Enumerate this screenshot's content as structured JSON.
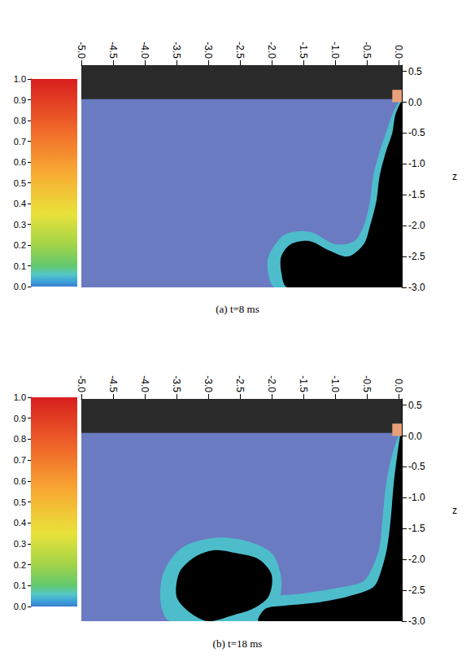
{
  "chart_data": [
    {
      "type": "field",
      "caption": "(a) t=8 ms",
      "y_label": "z",
      "grid": false,
      "xlim": [
        -5.0,
        0.05
      ],
      "xticks": [
        {
          "value": -5,
          "label": "-5.0"
        },
        -4.5,
        {
          "value": -4,
          "label": "-4.0"
        },
        -3.5,
        {
          "value": -3,
          "label": "-3.0"
        },
        -2.5,
        {
          "value": -2,
          "label": "-2.0"
        },
        -1.5,
        {
          "value": -1,
          "label": "-1.0"
        },
        -0.5,
        {
          "value": 0,
          "label": "0.0"
        }
      ],
      "ylim": [
        -3.0,
        0.6
      ],
      "yticks": [
        0.5,
        {
          "value": 0,
          "label": "0.0"
        },
        -0.5,
        {
          "value": -1,
          "label": "-1.0"
        },
        -1.5,
        {
          "value": -2,
          "label": "-2.0"
        },
        -2.5,
        {
          "value": -3,
          "label": "-3.0"
        }
      ],
      "field_color": "#6b7bc1",
      "wall": {
        "x": [
          -5.0,
          0.05
        ],
        "z": [
          0.05,
          0.6
        ],
        "color": "#2a2a2a"
      },
      "nozzle": {
        "x": [
          -0.1,
          0.05
        ],
        "z": [
          0.0,
          0.2
        ],
        "color": "#e8a07a"
      },
      "halo": {
        "value": 0.05,
        "polygons": [
          [
            [
              0.05,
              0.05
            ],
            [
              -0.1,
              -0.2
            ],
            [
              -0.2,
              -0.5
            ],
            [
              -0.3,
              -0.8
            ],
            [
              -0.4,
              -1.2
            ],
            [
              -0.45,
              -1.6
            ],
            [
              -0.55,
              -2.0
            ],
            [
              -0.7,
              -2.25
            ],
            [
              -1.0,
              -2.3
            ],
            [
              -1.4,
              -2.1
            ],
            [
              -1.8,
              -2.15
            ],
            [
              -2.05,
              -2.5
            ],
            [
              -2.05,
              -2.8
            ],
            [
              -1.95,
              -3.0
            ],
            [
              0.05,
              -3.0
            ]
          ]
        ]
      },
      "spray": {
        "color": "#000000",
        "polygons": [
          [
            [
              0.05,
              0.0
            ],
            [
              -0.05,
              -0.2
            ],
            [
              -0.1,
              -0.5
            ],
            [
              -0.2,
              -0.8
            ],
            [
              -0.3,
              -1.2
            ],
            [
              -0.35,
              -1.6
            ],
            [
              -0.45,
              -2.0
            ],
            [
              -0.55,
              -2.3
            ],
            [
              -0.8,
              -2.5
            ],
            [
              -1.1,
              -2.4
            ],
            [
              -1.4,
              -2.25
            ],
            [
              -1.7,
              -2.3
            ],
            [
              -1.85,
              -2.5
            ],
            [
              -1.85,
              -2.75
            ],
            [
              -1.75,
              -3.0
            ],
            [
              0.05,
              -3.0
            ]
          ]
        ]
      },
      "colorbar": {
        "range": [
          0,
          1
        ],
        "ticks": [
          {
            "value": 0,
            "label": "0.0"
          },
          0.1,
          0.2,
          0.3,
          0.4,
          0.5,
          0.6,
          0.7,
          0.8,
          0.9,
          {
            "value": 1,
            "label": "1.0"
          }
        ]
      }
    },
    {
      "type": "field",
      "caption": "(b) t=18 ms",
      "y_label": "z",
      "grid": false,
      "xlim": [
        -5.0,
        0.05
      ],
      "xticks": [
        {
          "value": -5,
          "label": "-5.0"
        },
        -4.5,
        {
          "value": -4,
          "label": "-4.0"
        },
        -3.5,
        {
          "value": -3,
          "label": "-3.0"
        },
        -2.5,
        {
          "value": -2,
          "label": "-2.0"
        },
        -1.5,
        {
          "value": -1,
          "label": "-1.0"
        },
        -0.5,
        {
          "value": 0,
          "label": "0.0"
        }
      ],
      "ylim": [
        -3.0,
        0.6
      ],
      "yticks": [
        0.5,
        {
          "value": 0,
          "label": "0.0"
        },
        -0.5,
        {
          "value": -1,
          "label": "-1.0"
        },
        -1.5,
        {
          "value": -2,
          "label": "-2.0"
        },
        -2.5,
        {
          "value": -3,
          "label": "-3.0"
        }
      ],
      "field_color": "#6b7bc1",
      "wall": {
        "x": [
          -5.0,
          0.05
        ],
        "z": [
          0.05,
          0.6
        ],
        "color": "#2a2a2a"
      },
      "nozzle": {
        "x": [
          -0.1,
          0.05
        ],
        "z": [
          0.0,
          0.2
        ],
        "color": "#e8a07a"
      },
      "halo": {
        "value": 0.05,
        "polygons": [
          [
            [
              0.05,
              0.1
            ],
            [
              -0.1,
              -0.3
            ],
            [
              -0.2,
              -0.8
            ],
            [
              -0.25,
              -1.3
            ],
            [
              -0.3,
              -1.8
            ],
            [
              -0.4,
              -2.1
            ],
            [
              -0.55,
              -2.35
            ],
            [
              -0.9,
              -2.45
            ],
            [
              -1.5,
              -2.55
            ],
            [
              -2.0,
              -2.6
            ],
            [
              -2.3,
              -2.7
            ],
            [
              -2.4,
              -3.0
            ],
            [
              0.05,
              -3.0
            ]
          ],
          [
            [
              -3.75,
              -2.7
            ],
            [
              -3.7,
              -2.2
            ],
            [
              -3.4,
              -1.8
            ],
            [
              -2.9,
              -1.65
            ],
            [
              -2.4,
              -1.7
            ],
            [
              -2.0,
              -1.9
            ],
            [
              -1.85,
              -2.3
            ],
            [
              -1.9,
              -2.7
            ],
            [
              -2.2,
              -3.0
            ],
            [
              -3.6,
              -3.0
            ]
          ]
        ]
      },
      "spray": {
        "color": "#000000",
        "polygons": [
          [
            [
              0.05,
              0.1
            ],
            [
              -0.02,
              -0.3
            ],
            [
              -0.08,
              -0.8
            ],
            [
              -0.12,
              -1.3
            ],
            [
              -0.18,
              -1.8
            ],
            [
              -0.28,
              -2.2
            ],
            [
              -0.4,
              -2.45
            ],
            [
              -0.8,
              -2.6
            ],
            [
              -1.3,
              -2.7
            ],
            [
              -1.8,
              -2.75
            ],
            [
              -2.1,
              -2.8
            ],
            [
              -2.2,
              -3.0
            ],
            [
              0.05,
              -3.0
            ]
          ],
          [
            [
              -3.5,
              -2.6
            ],
            [
              -3.45,
              -2.2
            ],
            [
              -3.2,
              -1.95
            ],
            [
              -2.9,
              -1.85
            ],
            [
              -2.55,
              -1.9
            ],
            [
              -2.2,
              -2.0
            ],
            [
              -2.0,
              -2.25
            ],
            [
              -2.05,
              -2.6
            ],
            [
              -2.3,
              -2.8
            ],
            [
              -2.6,
              -2.9
            ],
            [
              -3.0,
              -3.0
            ],
            [
              -3.3,
              -2.85
            ]
          ]
        ]
      },
      "colorbar": {
        "range": [
          0,
          1
        ],
        "ticks": [
          {
            "value": 0,
            "label": "0.0"
          },
          0.1,
          0.2,
          0.3,
          0.4,
          0.5,
          0.6,
          0.7,
          0.8,
          0.9,
          {
            "value": 1,
            "label": "1.0"
          }
        ]
      }
    }
  ]
}
